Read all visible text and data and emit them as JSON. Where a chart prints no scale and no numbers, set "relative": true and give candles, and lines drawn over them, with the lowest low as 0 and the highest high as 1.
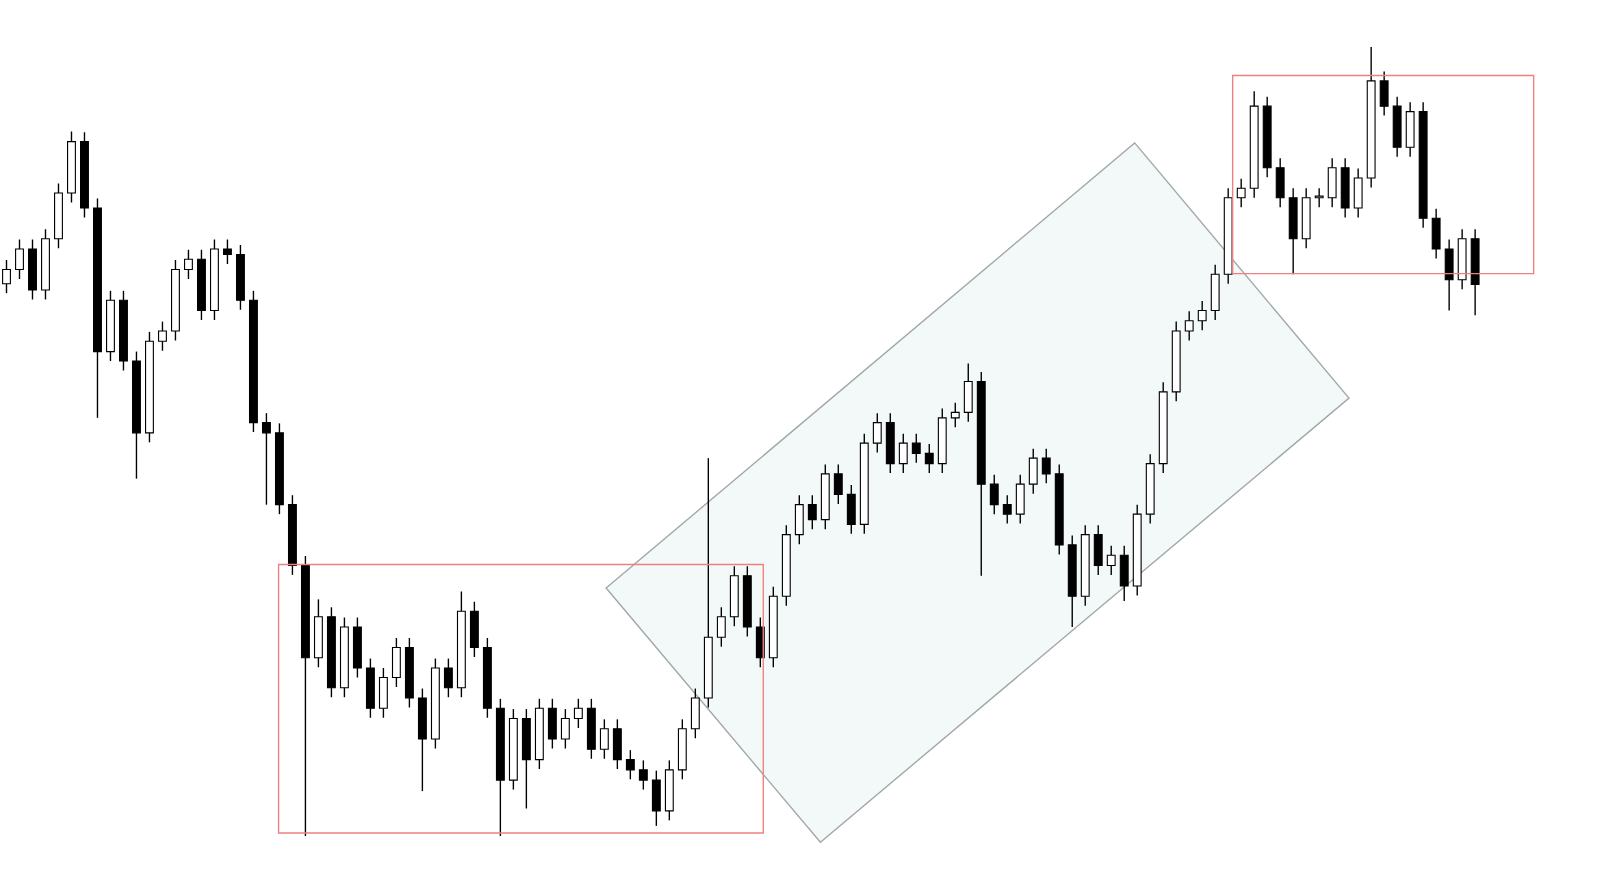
{
  "chart_data": {
    "type": "candlestick",
    "relative": true,
    "tick_labels": false,
    "categories": [
      null,
      null,
      null,
      null,
      null,
      null,
      null,
      null,
      null,
      null,
      null,
      null,
      null,
      null,
      null,
      null,
      null,
      null,
      null,
      null,
      null,
      null,
      null,
      null,
      null,
      null,
      null,
      null,
      null,
      null,
      null,
      null,
      null,
      null,
      null,
      null,
      null,
      null,
      null,
      null,
      null,
      null,
      null,
      null,
      null,
      null,
      null,
      null,
      null,
      null,
      null,
      null,
      null,
      null,
      null,
      null,
      null,
      null,
      null,
      null,
      null,
      null,
      null,
      null,
      null,
      null,
      null,
      null,
      null,
      null,
      null,
      null,
      null,
      null,
      null,
      null,
      null,
      null,
      null,
      null,
      null,
      null,
      null,
      null,
      null,
      null,
      null,
      null,
      null,
      null,
      null,
      null,
      null,
      null,
      null,
      null,
      null,
      null,
      null,
      null,
      null,
      null,
      null,
      null,
      null,
      null,
      null,
      null,
      null,
      null,
      null,
      null,
      null,
      null
    ],
    "ohlc": [
      [
        0.7,
        0.73,
        0.688,
        0.718
      ],
      [
        0.718,
        0.756,
        0.706,
        0.744
      ],
      [
        0.744,
        0.756,
        0.68,
        0.692
      ],
      [
        0.692,
        0.769,
        0.68,
        0.757
      ],
      [
        0.757,
        0.827,
        0.745,
        0.815
      ],
      [
        0.815,
        0.893,
        0.803,
        0.88
      ],
      [
        0.88,
        0.892,
        0.784,
        0.796
      ],
      [
        0.796,
        0.808,
        0.53,
        0.614
      ],
      [
        0.614,
        0.691,
        0.602,
        0.679
      ],
      [
        0.679,
        0.691,
        0.59,
        0.602
      ],
      [
        0.602,
        0.614,
        0.453,
        0.511
      ],
      [
        0.511,
        0.639,
        0.499,
        0.627
      ],
      [
        0.627,
        0.652,
        0.615,
        0.64
      ],
      [
        0.64,
        0.73,
        0.628,
        0.718
      ],
      [
        0.718,
        0.743,
        0.706,
        0.731
      ],
      [
        0.731,
        0.743,
        0.654,
        0.666
      ],
      [
        0.666,
        0.756,
        0.654,
        0.744
      ],
      [
        0.744,
        0.756,
        0.725,
        0.737
      ],
      [
        0.737,
        0.749,
        0.667,
        0.679
      ],
      [
        0.679,
        0.691,
        0.512,
        0.524
      ],
      [
        0.524,
        0.536,
        0.42,
        0.511
      ],
      [
        0.511,
        0.523,
        0.408,
        0.42
      ],
      [
        0.42,
        0.432,
        0.331,
        0.343
      ],
      [
        0.343,
        0.355,
        0.0,
        0.226
      ],
      [
        0.226,
        0.3,
        0.214,
        0.278
      ],
      [
        0.278,
        0.29,
        0.176,
        0.188
      ],
      [
        0.188,
        0.277,
        0.176,
        0.265
      ],
      [
        0.265,
        0.277,
        0.201,
        0.213
      ],
      [
        0.213,
        0.225,
        0.15,
        0.162
      ],
      [
        0.162,
        0.213,
        0.15,
        0.201
      ],
      [
        0.201,
        0.251,
        0.189,
        0.239
      ],
      [
        0.239,
        0.251,
        0.163,
        0.175
      ],
      [
        0.175,
        0.187,
        0.057,
        0.123
      ],
      [
        0.123,
        0.225,
        0.111,
        0.213
      ],
      [
        0.213,
        0.225,
        0.176,
        0.188
      ],
      [
        0.188,
        0.31,
        0.176,
        0.285
      ],
      [
        0.285,
        0.297,
        0.227,
        0.239
      ],
      [
        0.239,
        0.251,
        0.15,
        0.162
      ],
      [
        0.162,
        0.174,
        0.0,
        0.071
      ],
      [
        0.071,
        0.161,
        0.059,
        0.149
      ],
      [
        0.149,
        0.161,
        0.035,
        0.097
      ],
      [
        0.097,
        0.174,
        0.085,
        0.162
      ],
      [
        0.162,
        0.174,
        0.111,
        0.123
      ],
      [
        0.123,
        0.161,
        0.111,
        0.149
      ],
      [
        0.149,
        0.174,
        0.137,
        0.162
      ],
      [
        0.162,
        0.174,
        0.098,
        0.11
      ],
      [
        0.11,
        0.148,
        0.098,
        0.136
      ],
      [
        0.136,
        0.148,
        0.085,
        0.097
      ],
      [
        0.097,
        0.109,
        0.072,
        0.084
      ],
      [
        0.084,
        0.096,
        0.059,
        0.071
      ],
      [
        0.071,
        0.083,
        0.013,
        0.032
      ],
      [
        0.032,
        0.096,
        0.02,
        0.084
      ],
      [
        0.084,
        0.148,
        0.072,
        0.136
      ],
      [
        0.136,
        0.187,
        0.124,
        0.175
      ],
      [
        0.175,
        0.479,
        0.163,
        0.252
      ],
      [
        0.252,
        0.29,
        0.24,
        0.278
      ],
      [
        0.278,
        0.342,
        0.266,
        0.33
      ],
      [
        0.33,
        0.342,
        0.253,
        0.265
      ],
      [
        0.265,
        0.277,
        0.214,
        0.226
      ],
      [
        0.226,
        0.316,
        0.214,
        0.304
      ],
      [
        0.304,
        0.394,
        0.292,
        0.382
      ],
      [
        0.382,
        0.432,
        0.37,
        0.42
      ],
      [
        0.42,
        0.432,
        0.389,
        0.401
      ],
      [
        0.401,
        0.471,
        0.389,
        0.459
      ],
      [
        0.459,
        0.471,
        0.421,
        0.433
      ],
      [
        0.433,
        0.445,
        0.383,
        0.395
      ],
      [
        0.395,
        0.51,
        0.383,
        0.498
      ],
      [
        0.498,
        0.536,
        0.486,
        0.524
      ],
      [
        0.524,
        0.536,
        0.46,
        0.472
      ],
      [
        0.472,
        0.51,
        0.46,
        0.498
      ],
      [
        0.498,
        0.51,
        0.473,
        0.485
      ],
      [
        0.485,
        0.497,
        0.46,
        0.472
      ],
      [
        0.472,
        0.542,
        0.46,
        0.53
      ],
      [
        0.53,
        0.549,
        0.518,
        0.537
      ],
      [
        0.537,
        0.599,
        0.525,
        0.576
      ],
      [
        0.576,
        0.588,
        0.33,
        0.446
      ],
      [
        0.446,
        0.458,
        0.408,
        0.42
      ],
      [
        0.42,
        0.432,
        0.396,
        0.408
      ],
      [
        0.408,
        0.458,
        0.396,
        0.446
      ],
      [
        0.446,
        0.491,
        0.434,
        0.479
      ],
      [
        0.479,
        0.491,
        0.447,
        0.459
      ],
      [
        0.459,
        0.471,
        0.357,
        0.369
      ],
      [
        0.369,
        0.381,
        0.265,
        0.304
      ],
      [
        0.304,
        0.394,
        0.292,
        0.382
      ],
      [
        0.382,
        0.394,
        0.331,
        0.343
      ],
      [
        0.343,
        0.368,
        0.331,
        0.356
      ],
      [
        0.356,
        0.368,
        0.298,
        0.317
      ],
      [
        0.317,
        0.42,
        0.305,
        0.408
      ],
      [
        0.408,
        0.484,
        0.396,
        0.472
      ],
      [
        0.472,
        0.575,
        0.46,
        0.563
      ],
      [
        0.563,
        0.652,
        0.551,
        0.64
      ],
      [
        0.64,
        0.665,
        0.628,
        0.653
      ],
      [
        0.653,
        0.678,
        0.641,
        0.666
      ],
      [
        0.666,
        0.724,
        0.654,
        0.712
      ],
      [
        0.712,
        0.821,
        0.7,
        0.809
      ],
      [
        0.809,
        0.833,
        0.797,
        0.821
      ],
      [
        0.821,
        0.944,
        0.809,
        0.925
      ],
      [
        0.925,
        0.937,
        0.835,
        0.847
      ],
      [
        0.847,
        0.859,
        0.797,
        0.809
      ],
      [
        0.809,
        0.821,
        0.712,
        0.757
      ],
      [
        0.757,
        0.821,
        0.745,
        0.809
      ],
      [
        0.809,
        0.821,
        0.797,
        0.809
      ],
      [
        0.809,
        0.859,
        0.797,
        0.847
      ],
      [
        0.847,
        0.859,
        0.784,
        0.796
      ],
      [
        0.796,
        0.846,
        0.784,
        0.834
      ],
      [
        0.834,
        1.0,
        0.822,
        0.957
      ],
      [
        0.957,
        0.969,
        0.913,
        0.925
      ],
      [
        0.925,
        0.937,
        0.861,
        0.873
      ],
      [
        0.873,
        0.93,
        0.861,
        0.918
      ],
      [
        0.918,
        0.93,
        0.771,
        0.783
      ],
      [
        0.783,
        0.795,
        0.732,
        0.744
      ],
      [
        0.744,
        0.756,
        0.666,
        0.705
      ],
      [
        0.705,
        0.769,
        0.693,
        0.757
      ],
      [
        0.757,
        0.769,
        0.66,
        0.699
      ]
    ]
  }
}
